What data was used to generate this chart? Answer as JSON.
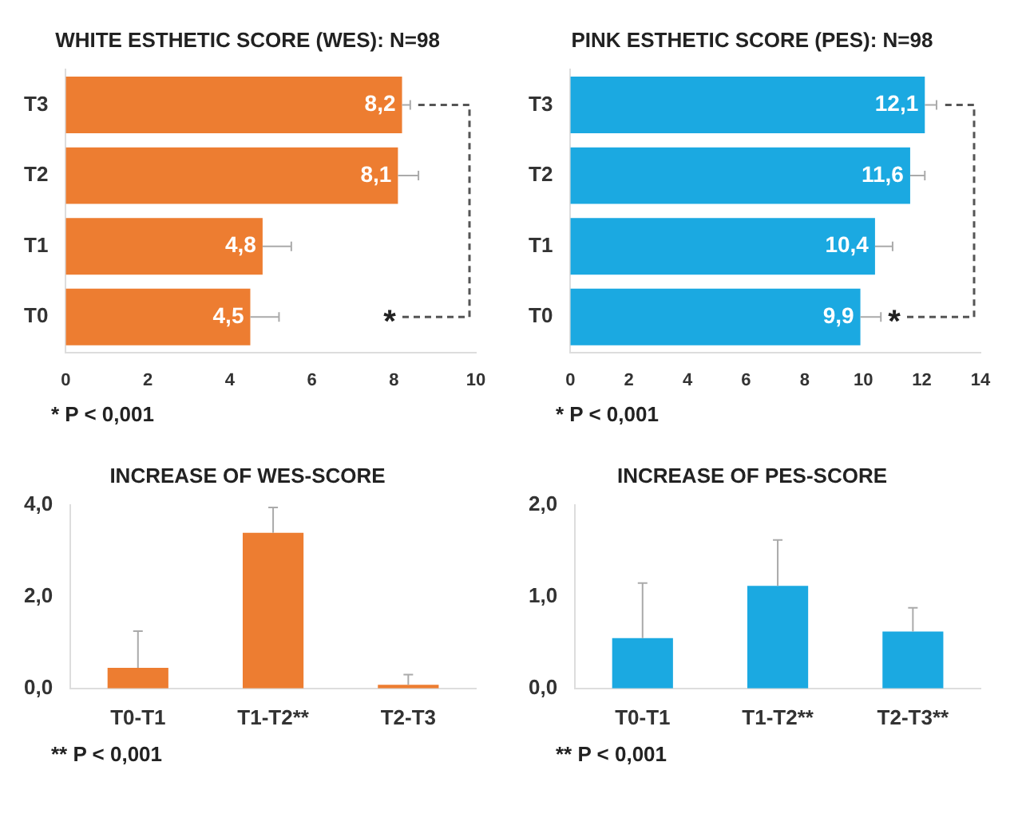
{
  "chart_data": [
    {
      "type": "bar",
      "title": "WHITE ESTHETIC SCORE (WES): N=98",
      "orientation": "horizontal",
      "categories": [
        "T3",
        "T2",
        "T1",
        "T0"
      ],
      "values": [
        8.2,
        8.1,
        4.8,
        4.5
      ],
      "color": "#ed7d31",
      "value_labels": [
        "8,2",
        "8,1",
        "4,8",
        "4,5"
      ],
      "errors": [
        [
          8.2,
          8.4
        ],
        [
          8.1,
          8.6
        ],
        [
          4.8,
          5.5
        ],
        [
          4.5,
          5.2
        ]
      ],
      "xlim": [
        0,
        10
      ],
      "xticks": [
        0,
        2,
        4,
        6,
        8,
        10
      ],
      "grid": false,
      "legend": false,
      "annotations": [
        "*",
        "* P < 0,001"
      ]
    },
    {
      "type": "bar",
      "title": "PINK ESTHETIC SCORE (PES): N=98",
      "orientation": "horizontal",
      "categories": [
        "T3",
        "T2",
        "T1",
        "T0"
      ],
      "values": [
        12.1,
        11.6,
        10.4,
        9.9
      ],
      "color": "#1ba9e1",
      "value_labels": [
        "12,1",
        "11,6",
        "10,4",
        "9,9"
      ],
      "errors": [
        [
          12.1,
          12.5
        ],
        [
          11.6,
          12.1
        ],
        [
          10.4,
          11.0
        ],
        [
          9.9,
          10.6
        ]
      ],
      "xlim": [
        0,
        14
      ],
      "xticks": [
        0,
        2,
        4,
        6,
        8,
        10,
        12,
        14
      ],
      "grid": false,
      "legend": false,
      "annotations": [
        "*",
        "* P < 0,001"
      ]
    },
    {
      "type": "bar",
      "title": "INCREASE OF WES-SCORE",
      "categories": [
        "T0-T1",
        "T1-T2**",
        "T2-T3"
      ],
      "values": [
        0.45,
        3.4,
        0.08
      ],
      "color": "#ed7d31",
      "errors": [
        [
          0.45,
          1.25
        ],
        [
          3.4,
          3.95
        ],
        [
          0.08,
          0.3
        ]
      ],
      "ylim": [
        0,
        4
      ],
      "yticks": [
        {
          "value": 0,
          "label": "0,0"
        },
        {
          "value": 2,
          "label": "2,0"
        },
        {
          "value": 4,
          "label": "4,0"
        }
      ],
      "grid": false,
      "legend": false,
      "annotations": [
        "** P < 0,001"
      ]
    },
    {
      "type": "bar",
      "title": "INCREASE OF PES-SCORE",
      "categories": [
        "T0-T1",
        "T1-T2**",
        "T2-T3**"
      ],
      "values": [
        0.55,
        1.12,
        0.62
      ],
      "color": "#1ba9e1",
      "errors": [
        [
          0.55,
          1.15
        ],
        [
          1.12,
          1.62
        ],
        [
          0.62,
          0.88
        ]
      ],
      "ylim": [
        0,
        2
      ],
      "yticks": [
        {
          "value": 0,
          "label": "0,0"
        },
        {
          "value": 1,
          "label": "1,0"
        },
        {
          "value": 2,
          "label": "2,0"
        }
      ],
      "grid": false,
      "legend": false,
      "annotations": [
        "** P < 0,001"
      ]
    }
  ]
}
